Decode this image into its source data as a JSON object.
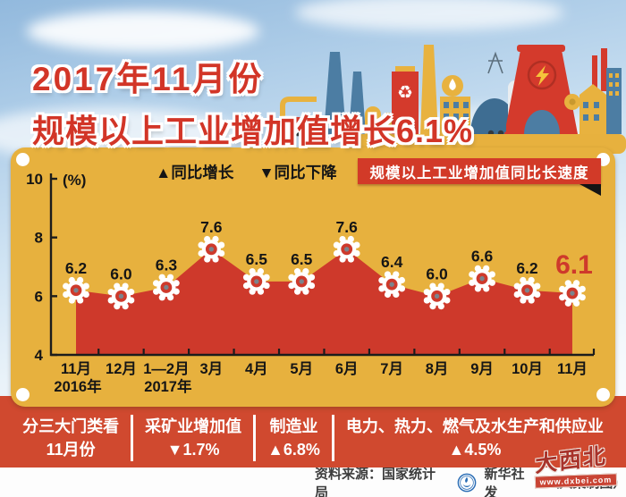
{
  "title": {
    "line1": "2017年11月份",
    "line2": "规模以上工业增加值增长6.1%"
  },
  "legend": {
    "up_label": "▲同比增长",
    "down_label": "▼同比下降"
  },
  "badge": {
    "label": "规模以上工业增加值同比长速度"
  },
  "chart_data": {
    "type": "area",
    "title": "规模以上工业增加值同比长速度",
    "unit_label": "(%)",
    "categories": [
      "11月",
      "12月",
      "1—2月",
      "3月",
      "4月",
      "5月",
      "6月",
      "7月",
      "8月",
      "9月",
      "10月",
      "11月"
    ],
    "values": [
      6.2,
      6.0,
      6.3,
      7.6,
      6.5,
      6.5,
      7.6,
      6.4,
      6.0,
      6.6,
      6.2,
      6.1
    ],
    "value_labels": [
      "6.2",
      "6.0",
      "6.3",
      "7.6",
      "6.5",
      "6.5",
      "7.6",
      "6.4",
      "6.0",
      "6.6",
      "6.2",
      "6.1"
    ],
    "year_markers": [
      {
        "index": 0,
        "label": "2016年"
      },
      {
        "index": 2,
        "label": "2017年"
      }
    ],
    "y_ticks": [
      "4",
      "6",
      "8",
      "10"
    ],
    "ylim": [
      4,
      10
    ],
    "grid": false,
    "legend_position": "top",
    "marker": "gear",
    "area_color": "#ce392b",
    "highlight_last": true
  },
  "band": {
    "columns": [
      {
        "line1": "分三大门类看",
        "line2": "11月份"
      },
      {
        "line1": "采矿业增加值",
        "line2": "▼1.7%"
      },
      {
        "line1": "制造业",
        "line2": "▲6.8%"
      },
      {
        "line1": "电力、热力、燃气及水生产和供应业",
        "line2": "▲4.5%"
      }
    ]
  },
  "footer": {
    "source": "资料来源：国家统计局",
    "credit": "新华社发",
    "credit_note": "（大巢制图）",
    "watermark_name": "大西北",
    "watermark_site": "www.dxbei.com"
  },
  "colors": {
    "panel": "#e7b13e",
    "area_red": "#ce392b",
    "band_red": "#d0492f",
    "badge_red": "#d23a28",
    "title_red": "#d23527"
  }
}
